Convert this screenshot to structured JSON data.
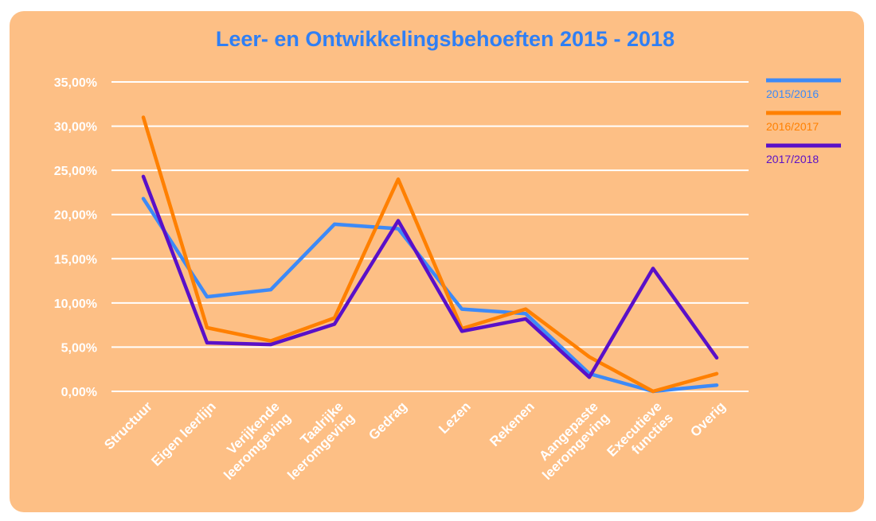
{
  "colors": {
    "background": "#FDBF85",
    "grid": "#ffffff",
    "title": "#2F7FF5",
    "series": [
      "#3D8AF7",
      "#FF8000",
      "#5A10C8"
    ]
  },
  "chart_data": {
    "type": "line",
    "title": "Leer- en Ontwikkelingsbehoeften 2015 - 2018",
    "xlabel": "",
    "ylabel": "",
    "ylim": [
      0,
      35
    ],
    "yticks": [
      "0,00%",
      "5,00%",
      "10,00%",
      "15,00%",
      "20,00%",
      "25,00%",
      "30,00%",
      "35,00%"
    ],
    "grid": true,
    "legend_position": "right",
    "categories": [
      [
        "Structuur"
      ],
      [
        "Eigen leerlijn"
      ],
      [
        "Verijkende",
        "leeromgeving"
      ],
      [
        "Taalrijke",
        "leeromgeving"
      ],
      [
        "Gedrag"
      ],
      [
        "Lezen"
      ],
      [
        "Rekenen"
      ],
      [
        "Aangepaste",
        "leeromgeving"
      ],
      [
        "Executieve",
        "functies"
      ],
      [
        "Overig"
      ]
    ],
    "series": [
      {
        "name": "2015/2016",
        "values": [
          21.8,
          10.7,
          11.5,
          18.9,
          18.4,
          9.3,
          8.8,
          2.0,
          0.0,
          0.7
        ]
      },
      {
        "name": "2016/2017",
        "values": [
          31.0,
          7.2,
          5.7,
          8.3,
          24.0,
          7.1,
          9.3,
          3.9,
          0.0,
          2.0
        ]
      },
      {
        "name": "2017/2018",
        "values": [
          24.3,
          5.5,
          5.3,
          7.6,
          19.3,
          6.8,
          8.2,
          1.6,
          13.9,
          3.8
        ]
      }
    ]
  }
}
